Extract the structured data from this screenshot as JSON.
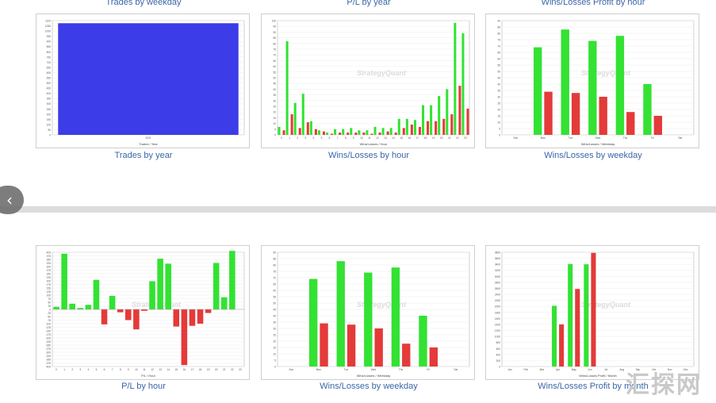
{
  "watermark": "汇探网",
  "colors": {
    "green": "#33e233",
    "red": "#e43a3a",
    "blue": "#3c3ce8",
    "text": "#3a66a8"
  },
  "top_captions": [
    "Trades by weekday",
    "P/L by year",
    "Wins/Losses Profit by hour"
  ],
  "chart_data": [
    {
      "id": "c0",
      "type": "bar",
      "title": "Trades by year",
      "xlabel": "Trades / Year",
      "ylim": [
        0,
        1100
      ],
      "yticks": [
        "0",
        "50",
        "100",
        "150",
        "200",
        "250",
        "300",
        "350",
        "400",
        "450",
        "500",
        "550",
        "600",
        "650",
        "700",
        "750",
        "800",
        "850",
        "900",
        "950",
        "1000",
        "1050",
        "1100"
      ],
      "categories": [
        "2021"
      ],
      "series": [
        {
          "color": "#3c3ce8",
          "values": [
            1075
          ]
        }
      ],
      "watermark": ""
    },
    {
      "id": "c1",
      "type": "bar",
      "title": "Wins/Losses by hour",
      "xlabel": "Wins/Losses / Hour",
      "ylim": [
        0,
        100
      ],
      "yticks": [
        "0",
        "5",
        "10",
        "15",
        "20",
        "25",
        "30",
        "35",
        "40",
        "45",
        "50",
        "55",
        "60",
        "65",
        "70",
        "75",
        "80",
        "85",
        "90",
        "95",
        "100"
      ],
      "categories": [
        "0",
        "1",
        "2",
        "3",
        "4",
        "5",
        "6",
        "7",
        "8",
        "9",
        "10",
        "11",
        "12",
        "13",
        "14",
        "15",
        "16",
        "17",
        "18",
        "19",
        "20",
        "21",
        "22",
        "23"
      ],
      "series": [
        {
          "color": "#33e233",
          "values": [
            7,
            82,
            28,
            36,
            12,
            4,
            2,
            5,
            5,
            6,
            4,
            4,
            7,
            6,
            6,
            14,
            14,
            13,
            26,
            26,
            34,
            40,
            98,
            89
          ]
        },
        {
          "color": "#e43a3a",
          "values": [
            4,
            18,
            6,
            11,
            5,
            3,
            1,
            2,
            2,
            2,
            2,
            1,
            2,
            3,
            2,
            6,
            9,
            7,
            12,
            12,
            14,
            18,
            43,
            23
          ]
        }
      ],
      "watermark": "StrategyQuant"
    },
    {
      "id": "c2",
      "type": "bar",
      "title": "Wins/Losses by weekday",
      "xlabel": "Wins/Losses / Weekday",
      "ylim": [
        0,
        90
      ],
      "yticks": [
        "0",
        "5",
        "10",
        "15",
        "20",
        "25",
        "30",
        "35",
        "40",
        "45",
        "50",
        "55",
        "60",
        "65",
        "70",
        "75",
        "80",
        "85",
        "90"
      ],
      "categories": [
        "Sun",
        "Mon",
        "Tue",
        "Wed",
        "Thu",
        "Fri",
        "Sat"
      ],
      "series": [
        {
          "color": "#33e233",
          "values": [
            0,
            69,
            83,
            74,
            78,
            40,
            0
          ]
        },
        {
          "color": "#e43a3a",
          "values": [
            0,
            34,
            33,
            30,
            18,
            15,
            0
          ]
        }
      ],
      "watermark": "StrategyQuant"
    },
    {
      "id": "c3",
      "type": "bar",
      "title": "P/L by hour",
      "xlabel": "P/L / Hour",
      "ylim": [
        -400,
        400
      ],
      "yticks": [
        "-400",
        "-375",
        "-350",
        "-325",
        "-300",
        "-275",
        "-250",
        "-225",
        "-200",
        "-175",
        "-150",
        "-125",
        "-100",
        "-75",
        "-50",
        "-25",
        "0",
        "25",
        "50",
        "75",
        "100",
        "125",
        "150",
        "175",
        "200",
        "225",
        "250",
        "275",
        "300",
        "325",
        "350",
        "375",
        "400"
      ],
      "categories": [
        "0",
        "1",
        "2",
        "3",
        "4",
        "5",
        "6",
        "7",
        "8",
        "9",
        "10",
        "11",
        "12",
        "13",
        "14",
        "15",
        "16",
        "17",
        "18",
        "19",
        "20",
        "21",
        "22",
        "23"
      ],
      "series": [
        {
          "color": "auto",
          "values": [
            18,
            390,
            40,
            10,
            32,
            207,
            -105,
            95,
            -20,
            -75,
            -140,
            -10,
            197,
            355,
            320,
            -120,
            -390,
            -115,
            -100,
            -25,
            325,
            85,
            410,
            0
          ]
        }
      ],
      "watermark": "StrategyQuant"
    },
    {
      "id": "c4",
      "type": "bar",
      "title": "Wins/Losses by weekday",
      "xlabel": "Wins/Losses / Weekday",
      "ylim": [
        0,
        90
      ],
      "yticks": [
        "0",
        "5",
        "10",
        "15",
        "20",
        "25",
        "30",
        "35",
        "40",
        "45",
        "50",
        "55",
        "60",
        "65",
        "70",
        "75",
        "80",
        "85",
        "90"
      ],
      "categories": [
        "Sun",
        "Mon",
        "Tue",
        "Wed",
        "Thu",
        "Fri",
        "Sat"
      ],
      "series": [
        {
          "color": "#33e233",
          "values": [
            0,
            69,
            83,
            74,
            78,
            40,
            0
          ]
        },
        {
          "color": "#e43a3a",
          "values": [
            0,
            34,
            33,
            30,
            18,
            15,
            0
          ]
        }
      ],
      "watermark": "StrategyQuant"
    },
    {
      "id": "c5",
      "type": "bar",
      "title": "Wins/Losses Profit by month",
      "xlabel": "Wins/Losses Profit / Month",
      "ylim": [
        0,
        3800
      ],
      "yticks": [
        "0",
        "200",
        "400",
        "600",
        "800",
        "1000",
        "1200",
        "1400",
        "1600",
        "1800",
        "2000",
        "2200",
        "2400",
        "2600",
        "2800",
        "3000",
        "3200",
        "3400",
        "3600",
        "3800"
      ],
      "categories": [
        "Jan",
        "Feb",
        "Mar",
        "Apr",
        "May",
        "Jun",
        "Jul",
        "Aug",
        "Sep",
        "Oct",
        "Nov",
        "Dec"
      ],
      "series": [
        {
          "color": "#33e233",
          "values": [
            0,
            0,
            0,
            2020,
            3410,
            3400,
            0,
            0,
            0,
            0,
            0,
            0
          ]
        },
        {
          "color": "#e43a3a",
          "values": [
            0,
            0,
            0,
            1400,
            2580,
            3780,
            0,
            0,
            0,
            0,
            0,
            0
          ]
        }
      ],
      "watermark": "StrategyQuant"
    }
  ]
}
